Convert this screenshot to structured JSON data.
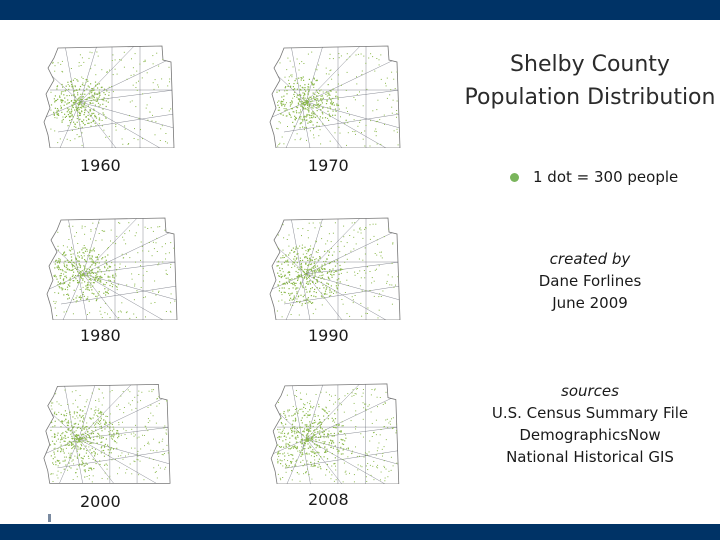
{
  "title": {
    "line1": "Shelby County",
    "line2": "Population Distribution"
  },
  "legend": {
    "text": "1 dot = 300 people",
    "dot_color": "#7ab55c"
  },
  "created": {
    "label": "created by",
    "author": "Dane Forlines",
    "date": "June 2009"
  },
  "sources": {
    "label": "sources",
    "items": [
      "U.S. Census Summary File",
      "DemographicsNow",
      "National Historical GIS"
    ]
  },
  "maps": [
    {
      "year": "1960",
      "density": 0.45
    },
    {
      "year": "1970",
      "density": 0.5
    },
    {
      "year": "1980",
      "density": 0.55
    },
    {
      "year": "1990",
      "density": 0.6
    },
    {
      "year": "2000",
      "density": 0.8
    },
    {
      "year": "2008",
      "density": 0.85
    }
  ],
  "colors": {
    "bar": "#003366",
    "dot": "#8ab84a",
    "road": "#555a66",
    "outline": "#777777"
  }
}
